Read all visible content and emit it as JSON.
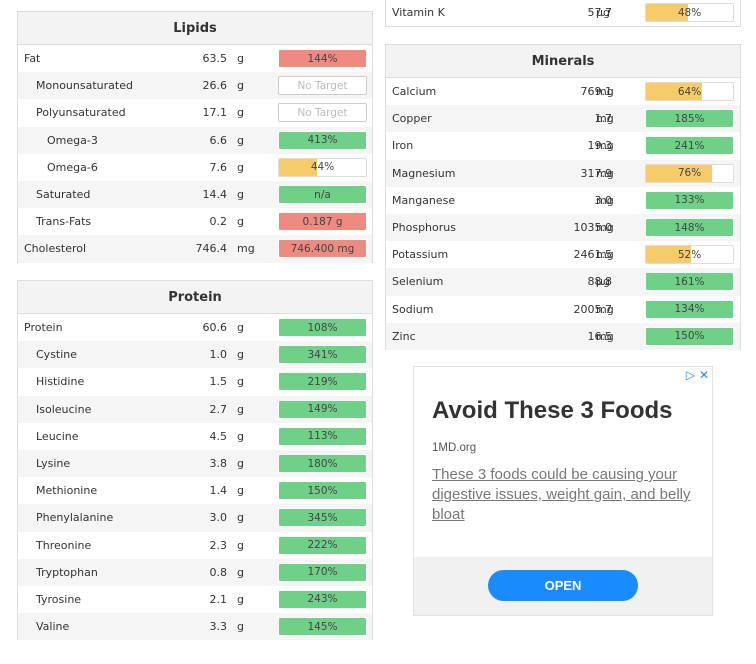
{
  "lipids": {
    "title": "Lipids",
    "rows": [
      {
        "name": "Fat",
        "amount": "63.5",
        "unit": "g",
        "bar": "144%",
        "color": "red",
        "fill": 1.0,
        "indent": 0
      },
      {
        "name": "Monounsaturated",
        "amount": "26.6",
        "unit": "g",
        "bar": "No Target",
        "color": "none",
        "fill": 0,
        "indent": 1
      },
      {
        "name": "Polyunsaturated",
        "amount": "17.1",
        "unit": "g",
        "bar": "No Target",
        "color": "none",
        "fill": 0,
        "indent": 1
      },
      {
        "name": "Omega-3",
        "amount": "6.6",
        "unit": "g",
        "bar": "413%",
        "color": "green",
        "fill": 1.0,
        "indent": 2
      },
      {
        "name": "Omega-6",
        "amount": "7.6",
        "unit": "g",
        "bar": "44%",
        "color": "yellow",
        "fill": 0.44,
        "indent": 2
      },
      {
        "name": "Saturated",
        "amount": "14.4",
        "unit": "g",
        "bar": "n/a",
        "color": "green",
        "fill": 1.0,
        "indent": 1
      },
      {
        "name": "Trans-Fats",
        "amount": "0.2",
        "unit": "g",
        "bar": "0.187 g",
        "color": "red",
        "fill": 1.0,
        "indent": 1
      },
      {
        "name": "Cholesterol",
        "amount": "746.4",
        "unit": "mg",
        "bar": "746.400 mg",
        "color": "red",
        "fill": 1.0,
        "indent": 0
      }
    ]
  },
  "protein": {
    "title": "Protein",
    "rows": [
      {
        "name": "Protein",
        "amount": "60.6",
        "unit": "g",
        "bar": "108%",
        "color": "green",
        "fill": 1.0,
        "indent": 0
      },
      {
        "name": "Cystine",
        "amount": "1.0",
        "unit": "g",
        "bar": "341%",
        "color": "green",
        "fill": 1.0,
        "indent": 1
      },
      {
        "name": "Histidine",
        "amount": "1.5",
        "unit": "g",
        "bar": "219%",
        "color": "green",
        "fill": 1.0,
        "indent": 1
      },
      {
        "name": "Isoleucine",
        "amount": "2.7",
        "unit": "g",
        "bar": "149%",
        "color": "green",
        "fill": 1.0,
        "indent": 1
      },
      {
        "name": "Leucine",
        "amount": "4.5",
        "unit": "g",
        "bar": "113%",
        "color": "green",
        "fill": 1.0,
        "indent": 1
      },
      {
        "name": "Lysine",
        "amount": "3.8",
        "unit": "g",
        "bar": "180%",
        "color": "green",
        "fill": 1.0,
        "indent": 1
      },
      {
        "name": "Methionine",
        "amount": "1.4",
        "unit": "g",
        "bar": "150%",
        "color": "green",
        "fill": 1.0,
        "indent": 1
      },
      {
        "name": "Phenylalanine",
        "amount": "3.0",
        "unit": "g",
        "bar": "345%",
        "color": "green",
        "fill": 1.0,
        "indent": 1
      },
      {
        "name": "Threonine",
        "amount": "2.3",
        "unit": "g",
        "bar": "222%",
        "color": "green",
        "fill": 1.0,
        "indent": 1
      },
      {
        "name": "Tryptophan",
        "amount": "0.8",
        "unit": "g",
        "bar": "170%",
        "color": "green",
        "fill": 1.0,
        "indent": 1
      },
      {
        "name": "Tyrosine",
        "amount": "2.1",
        "unit": "g",
        "bar": "243%",
        "color": "green",
        "fill": 1.0,
        "indent": 1
      },
      {
        "name": "Valine",
        "amount": "3.3",
        "unit": "g",
        "bar": "145%",
        "color": "green",
        "fill": 1.0,
        "indent": 1
      }
    ]
  },
  "vitamins_tail": {
    "rows": [
      {
        "name": "Vitamin K",
        "amount": "57.7",
        "unit": "µg",
        "bar": "48%",
        "color": "yellow",
        "fill": 0.48,
        "indent": 0
      }
    ]
  },
  "minerals": {
    "title": "Minerals",
    "rows": [
      {
        "name": "Calcium",
        "amount": "769.1",
        "unit": "mg",
        "bar": "64%",
        "color": "yellow",
        "fill": 0.64,
        "indent": 0
      },
      {
        "name": "Copper",
        "amount": "1.7",
        "unit": "mg",
        "bar": "185%",
        "color": "green",
        "fill": 1.0,
        "indent": 0
      },
      {
        "name": "Iron",
        "amount": "19.3",
        "unit": "mg",
        "bar": "241%",
        "color": "green",
        "fill": 1.0,
        "indent": 0
      },
      {
        "name": "Magnesium",
        "amount": "317.9",
        "unit": "mg",
        "bar": "76%",
        "color": "yellow",
        "fill": 0.76,
        "indent": 0
      },
      {
        "name": "Manganese",
        "amount": "3.0",
        "unit": "mg",
        "bar": "133%",
        "color": "green",
        "fill": 1.0,
        "indent": 0
      },
      {
        "name": "Phosphorus",
        "amount": "1035.0",
        "unit": "mg",
        "bar": "148%",
        "color": "green",
        "fill": 1.0,
        "indent": 0
      },
      {
        "name": "Potassium",
        "amount": "2461.5",
        "unit": "mg",
        "bar": "52%",
        "color": "yellow",
        "fill": 0.52,
        "indent": 0
      },
      {
        "name": "Selenium",
        "amount": "88.8",
        "unit": "µg",
        "bar": "161%",
        "color": "green",
        "fill": 1.0,
        "indent": 0
      },
      {
        "name": "Sodium",
        "amount": "2005.7",
        "unit": "mg",
        "bar": "134%",
        "color": "green",
        "fill": 1.0,
        "indent": 0
      },
      {
        "name": "Zinc",
        "amount": "16.5",
        "unit": "mg",
        "bar": "150%",
        "color": "green",
        "fill": 1.0,
        "indent": 0
      }
    ]
  },
  "ad": {
    "title": "Avoid These 3 Foods",
    "domain": "1MD.org",
    "description": "These 3 foods could be causing your digestive issues, weight gain, and belly bloat",
    "button_label": "OPEN",
    "adchoices_icon": "play-triangle-icon",
    "close_icon": "close-icon"
  },
  "colors": {
    "green": "#6fd187",
    "red": "#ef8a80",
    "yellow": "#f6cb6a",
    "accent": "#1a8cff"
  }
}
